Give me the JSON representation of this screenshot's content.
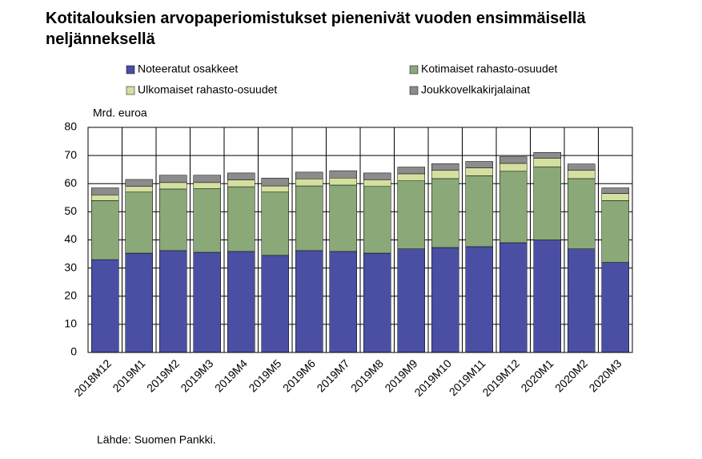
{
  "chart_data": {
    "type": "stacked-bar",
    "title": "Kotitalouksien arvopaperiomistukset pienenivät vuoden ensimmäisellä neljänneksellä",
    "y_label": "Mrd. euroa",
    "source": "Lähde: Suomen Pankki.",
    "categories": [
      "2018M12",
      "2019M1",
      "2019M2",
      "2019M3",
      "2019M4",
      "2019M5",
      "2019M6",
      "2019M7",
      "2019M8",
      "2019M9",
      "2019M10",
      "2019M11",
      "2019M12",
      "2020M1",
      "2020M2",
      "2020M3"
    ],
    "series": [
      {
        "name": "Noteeratut osakkeet",
        "color": "#4b4fa3",
        "values": [
          33,
          35.3,
          36.2,
          35.6,
          35.9,
          34.5,
          36.2,
          35.9,
          35.3,
          36.8,
          37.3,
          37.6,
          39,
          40,
          36.8,
          32
        ]
      },
      {
        "name": "Kotimaiset rahasto-osuudet",
        "color": "#8aa878",
        "values": [
          21,
          21.7,
          21.9,
          22.6,
          23,
          22.5,
          23,
          23.6,
          23.7,
          24.2,
          24.5,
          25.2,
          25.4,
          26,
          25,
          22
        ]
      },
      {
        "name": "Ulkomaiset rahasto-osuudet",
        "color": "#d4e0a0",
        "values": [
          2,
          2,
          2.3,
          2.2,
          2.4,
          2.2,
          2.5,
          2.5,
          2.4,
          2.5,
          2.9,
          2.8,
          2.8,
          3,
          2.9,
          2.5
        ]
      },
      {
        "name": "Joukkovelkakirjalainat",
        "color": "#8c8c8c",
        "values": [
          2.5,
          2.5,
          2.6,
          2.6,
          2.5,
          2.8,
          2.4,
          2.6,
          2.4,
          2.4,
          2.4,
          2.3,
          2.4,
          2.1,
          2.3,
          2
        ]
      }
    ],
    "ylim": [
      0,
      80
    ],
    "yticks": [
      0,
      10,
      20,
      30,
      40,
      50,
      60,
      70,
      80
    ],
    "grid": true
  }
}
